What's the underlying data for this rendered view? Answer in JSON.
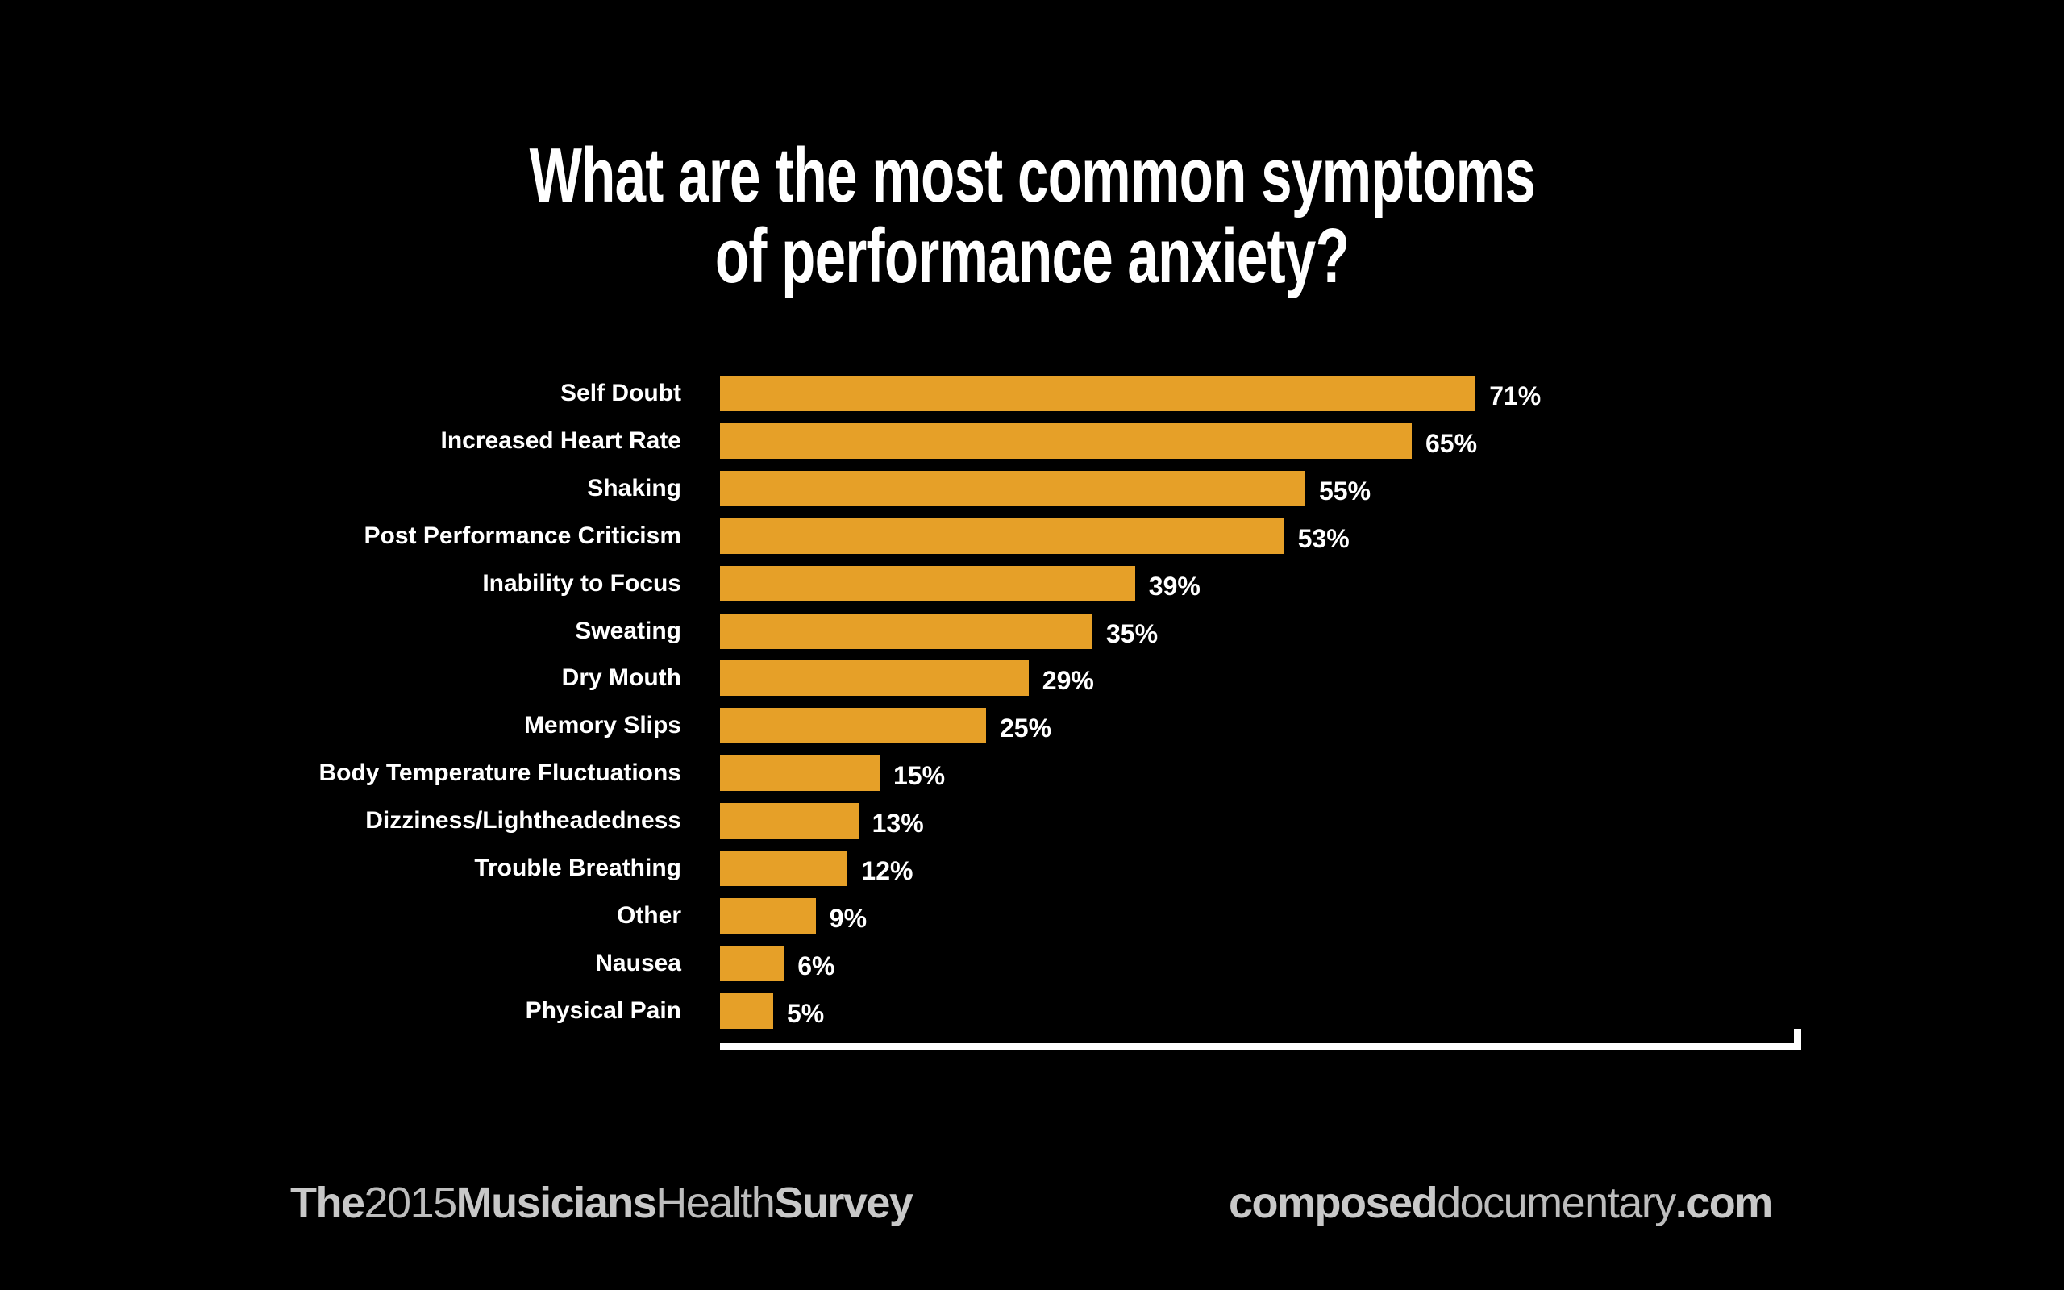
{
  "title": {
    "line1": "What are the most common symptoms",
    "line2": "of performance anxiety?"
  },
  "colors": {
    "background": "#000000",
    "bar": "#E6A028",
    "text": "#FFFFFF",
    "footer_text": "#C8C8C8"
  },
  "chart_data": {
    "type": "bar",
    "orientation": "horizontal",
    "title": "What are the most common symptoms of performance anxiety?",
    "categories": [
      "Self Doubt",
      "Increased Heart Rate",
      "Shaking",
      "Post Performance Criticism",
      "Inability to Focus",
      "Sweating",
      "Dry Mouth",
      "Memory Slips",
      "Body Temperature Fluctuations",
      "Dizziness/Lightheadedness",
      "Trouble Breathing",
      "Other",
      "Nausea",
      "Physical Pain"
    ],
    "values": [
      71,
      65,
      55,
      53,
      39,
      35,
      29,
      25,
      15,
      13,
      12,
      9,
      6,
      5
    ],
    "value_labels": [
      "71%",
      "65%",
      "55%",
      "53%",
      "39%",
      "35%",
      "29%",
      "25%",
      "15%",
      "13%",
      "12%",
      "9%",
      "6%",
      "5%"
    ],
    "unit": "%",
    "xlabel": "",
    "ylabel": "",
    "xlim": [
      0,
      100
    ],
    "grid": false,
    "legend": null
  },
  "footer": {
    "left": {
      "part1": "The",
      "part2": "2015",
      "part3": "Musicians",
      "part4": "Health",
      "part5": "Survey"
    },
    "right": {
      "part1": "composed",
      "part2": "documentary",
      "part3": ".com"
    }
  }
}
